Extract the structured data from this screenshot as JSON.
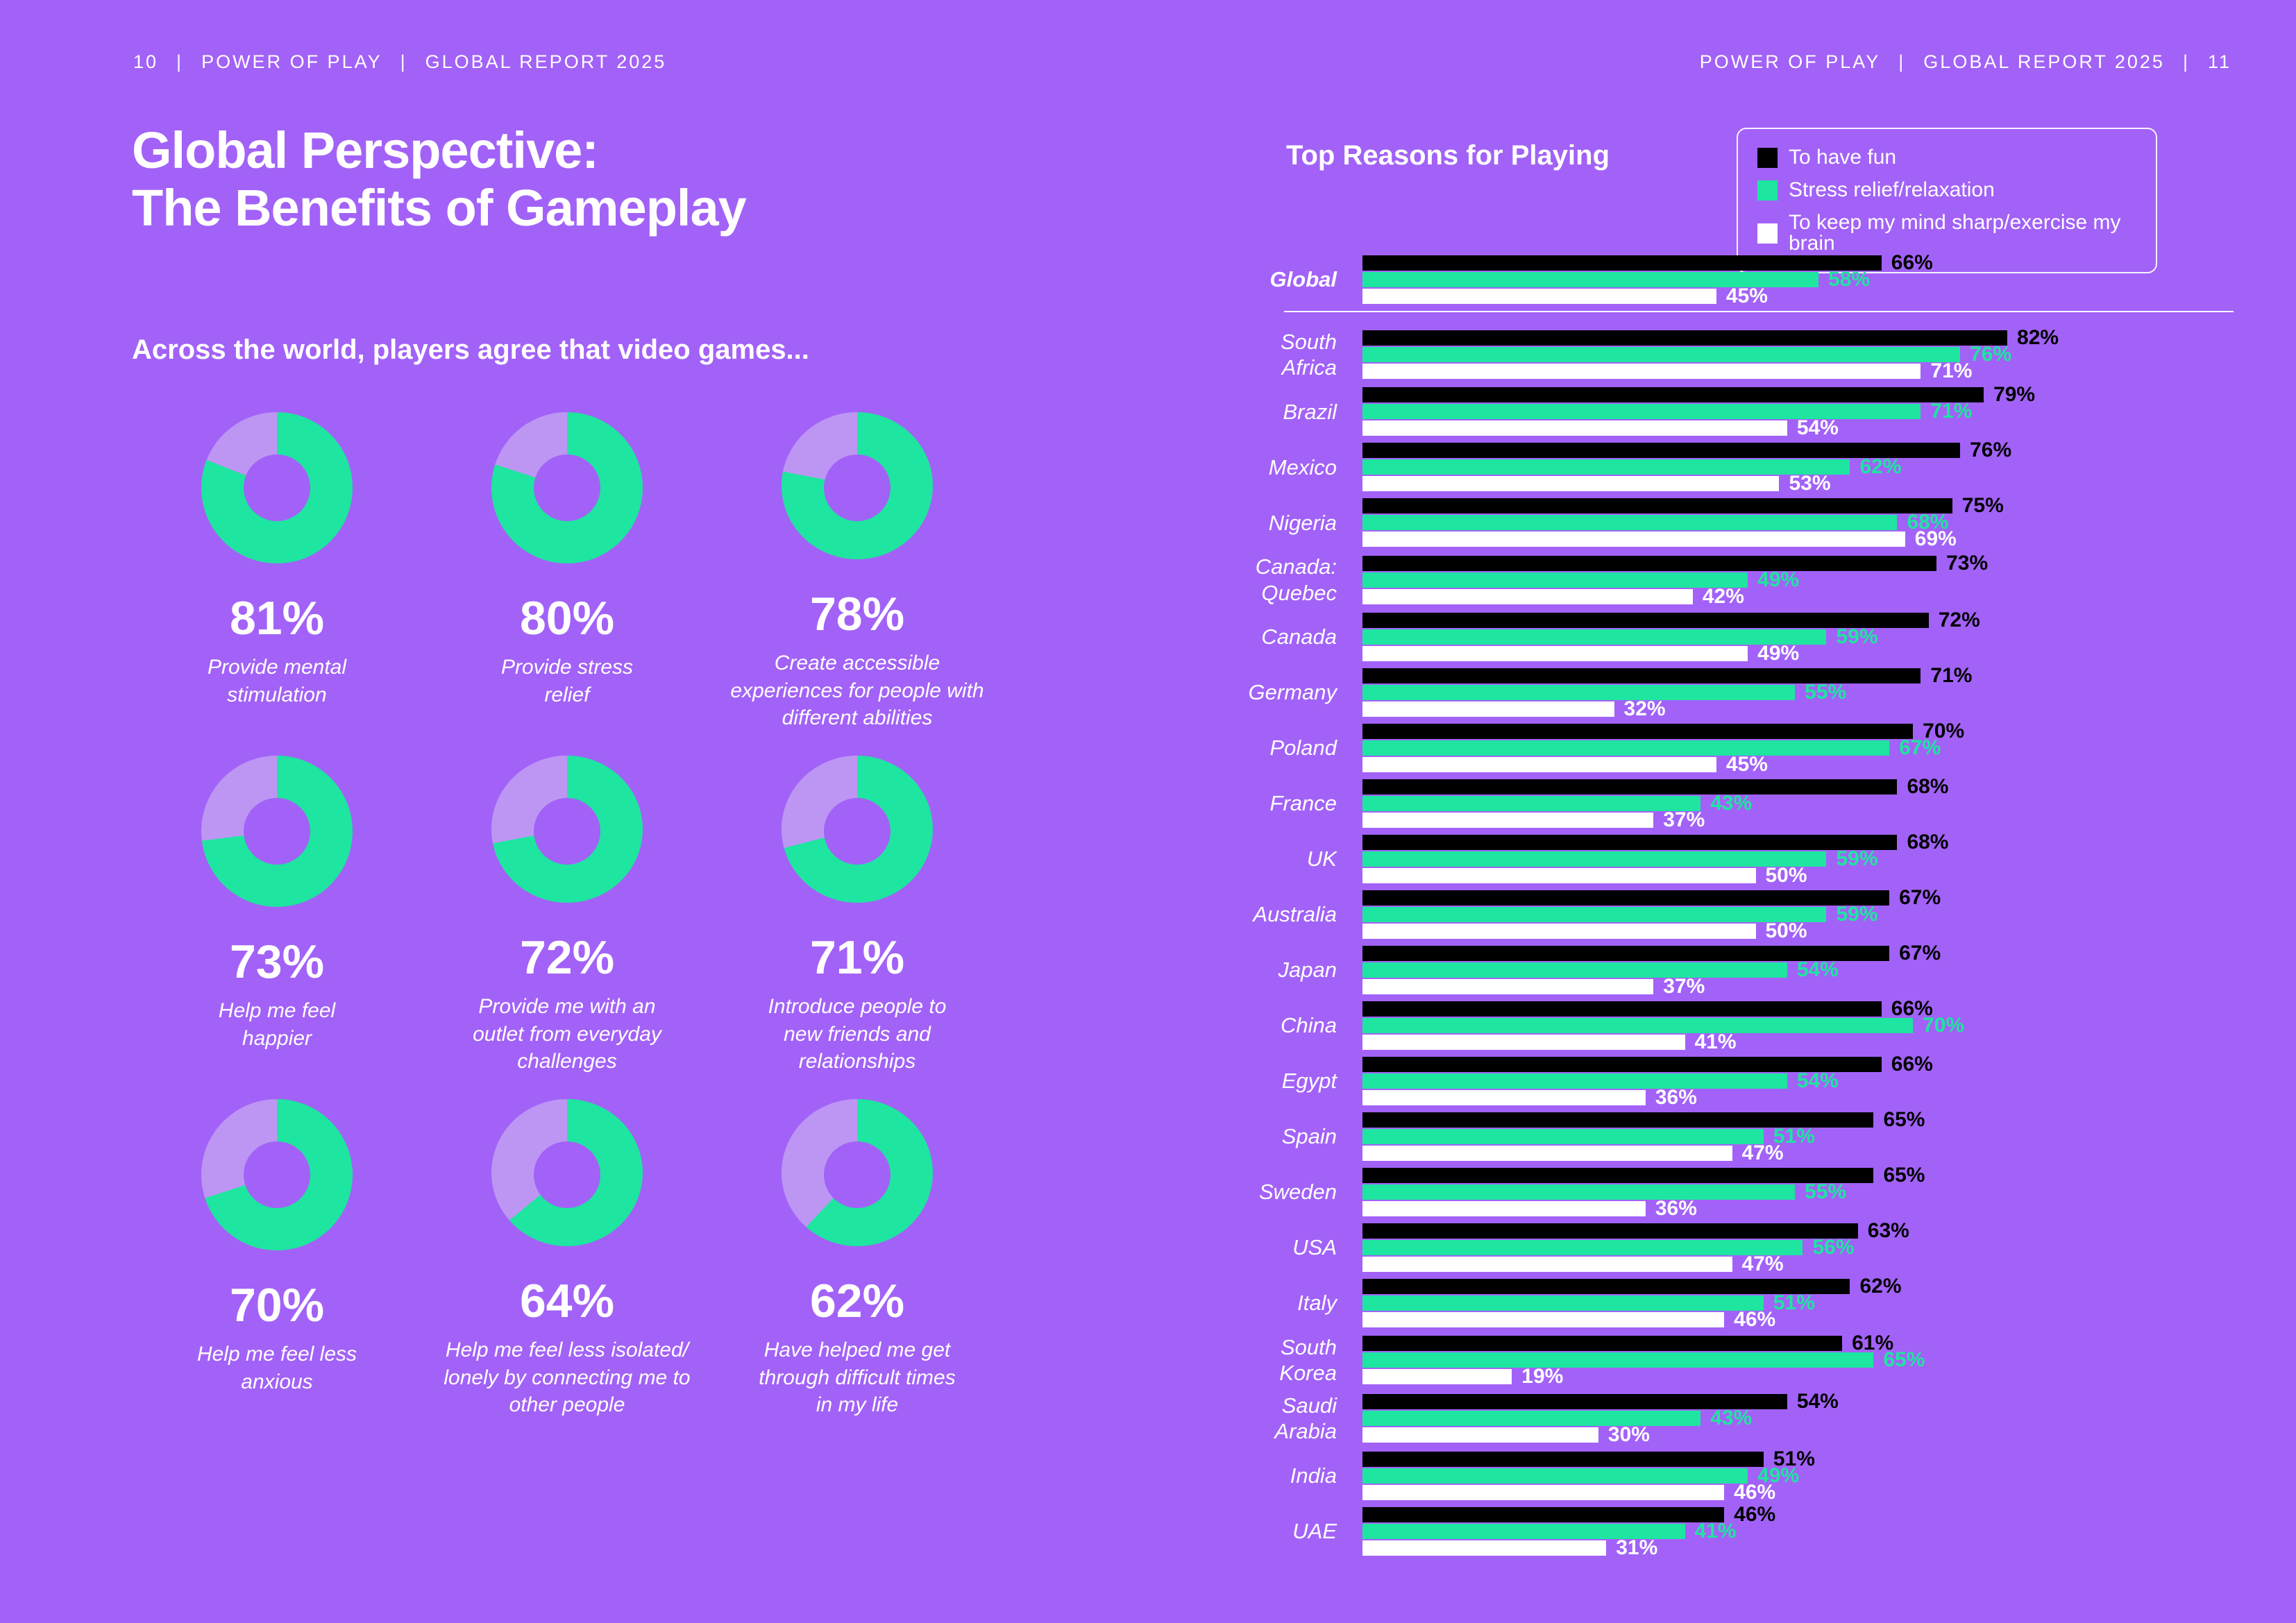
{
  "theme": {
    "background": "#a262f7",
    "light_purple": "#bd96f4",
    "green": "#1ee5a0",
    "black": "#000000",
    "white": "#ffffff"
  },
  "page_header": {
    "separator": "|",
    "left": {
      "page_num": "10",
      "brand": "POWER OF PLAY",
      "report": "GLOBAL REPORT 2025"
    },
    "right": {
      "brand": "POWER OF PLAY",
      "report": "GLOBAL REPORT 2025",
      "page_num": "11"
    }
  },
  "left_page": {
    "title": "Global Perspective:\nThe Benefits of Gameplay"
  },
  "chart_data": [
    {
      "type": "pie",
      "subtype": "donut-grid",
      "title": "Across the world, players agree that video games...",
      "units": "%",
      "ring_color": "#1ee5a0",
      "remainder_color": "#bd96f4",
      "items": [
        {
          "value": 81,
          "label": "Provide mental\nstimulation"
        },
        {
          "value": 80,
          "label": "Provide stress\nrelief"
        },
        {
          "value": 78,
          "label": "Create accessible\nexperiences for people with\ndifferent abilities"
        },
        {
          "value": 73,
          "label": "Help me feel\nhappier"
        },
        {
          "value": 72,
          "label": "Provide me with an\noutlet from everyday\nchallenges"
        },
        {
          "value": 71,
          "label": "Introduce people to\nnew friends and\nrelationships"
        },
        {
          "value": 70,
          "label": "Help me feel less\nanxious"
        },
        {
          "value": 64,
          "label": "Help me feel less isolated/\nlonely by connecting me to\nother people"
        },
        {
          "value": 62,
          "label": "Have helped me get\nthrough difficult times\nin my life"
        }
      ]
    },
    {
      "type": "bar",
      "orientation": "horizontal",
      "title": "Top Reasons for Playing",
      "units": "%",
      "xlim": [
        0,
        100
      ],
      "legend_position": "top-right",
      "grid": false,
      "series": [
        {
          "name": "To have fun",
          "color": "#000000"
        },
        {
          "name": "Stress relief/relaxation",
          "color": "#1ee5a0"
        },
        {
          "name": "To keep my mind sharp/exercise my brain",
          "color": "#ffffff"
        }
      ],
      "categories": [
        "Global",
        "South Africa",
        "Brazil",
        "Mexico",
        "Nigeria",
        "Canada:\nQuebec",
        "Canada",
        "Germany",
        "Poland",
        "France",
        "UK",
        "Australia",
        "Japan",
        "China",
        "Egypt",
        "Spain",
        "Sweden",
        "USA",
        "Italy",
        "South\nKorea",
        "Saudi\nArabia",
        "India",
        "UAE"
      ],
      "values": [
        [
          66,
          58,
          45
        ],
        [
          82,
          76,
          71
        ],
        [
          79,
          71,
          54
        ],
        [
          76,
          62,
          53
        ],
        [
          75,
          68,
          69
        ],
        [
          73,
          49,
          42
        ],
        [
          72,
          59,
          49
        ],
        [
          71,
          55,
          32
        ],
        [
          70,
          67,
          45
        ],
        [
          68,
          43,
          37
        ],
        [
          68,
          59,
          50
        ],
        [
          67,
          59,
          50
        ],
        [
          67,
          54,
          37
        ],
        [
          66,
          70,
          41
        ],
        [
          66,
          54,
          36
        ],
        [
          65,
          51,
          47
        ],
        [
          65,
          55,
          36
        ],
        [
          63,
          56,
          47
        ],
        [
          62,
          51,
          46
        ],
        [
          61,
          65,
          19
        ],
        [
          54,
          43,
          30
        ],
        [
          51,
          49,
          46
        ],
        [
          46,
          41,
          31
        ]
      ]
    }
  ]
}
